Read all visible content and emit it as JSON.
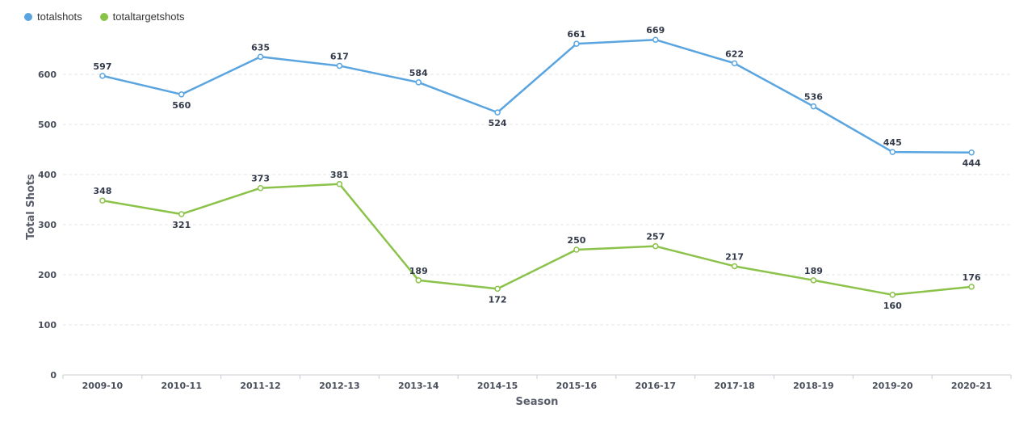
{
  "chart_data": {
    "type": "line",
    "categories": [
      "2009-10",
      "2010-11",
      "2011-12",
      "2012-13",
      "2013-14",
      "2014-15",
      "2015-16",
      "2016-17",
      "2017-18",
      "2018-19",
      "2019-20",
      "2020-21"
    ],
    "series": [
      {
        "name": "totalshots",
        "color": "#5aa5e0",
        "values": [
          597,
          560,
          635,
          617,
          584,
          524,
          661,
          669,
          622,
          536,
          445,
          444
        ]
      },
      {
        "name": "totaltargetshots",
        "color": "#8bc34a",
        "values": [
          348,
          321,
          373,
          381,
          189,
          172,
          250,
          257,
          217,
          189,
          160,
          176
        ]
      }
    ],
    "xlabel": "Season",
    "ylabel": "Total Shots",
    "ylim": [
      0,
      700
    ],
    "yticks": [
      0,
      100,
      200,
      300,
      400,
      500,
      600
    ],
    "grid": true,
    "legend_position": "top-left",
    "label_positions": {
      "totalshots": [
        "above",
        "below",
        "above",
        "above",
        "above",
        "below",
        "above",
        "above",
        "above",
        "above",
        "above",
        "below"
      ],
      "totaltargetshots": [
        "above",
        "below",
        "above",
        "above",
        "above",
        "below",
        "above",
        "above",
        "above",
        "above",
        "below",
        "above"
      ]
    }
  }
}
